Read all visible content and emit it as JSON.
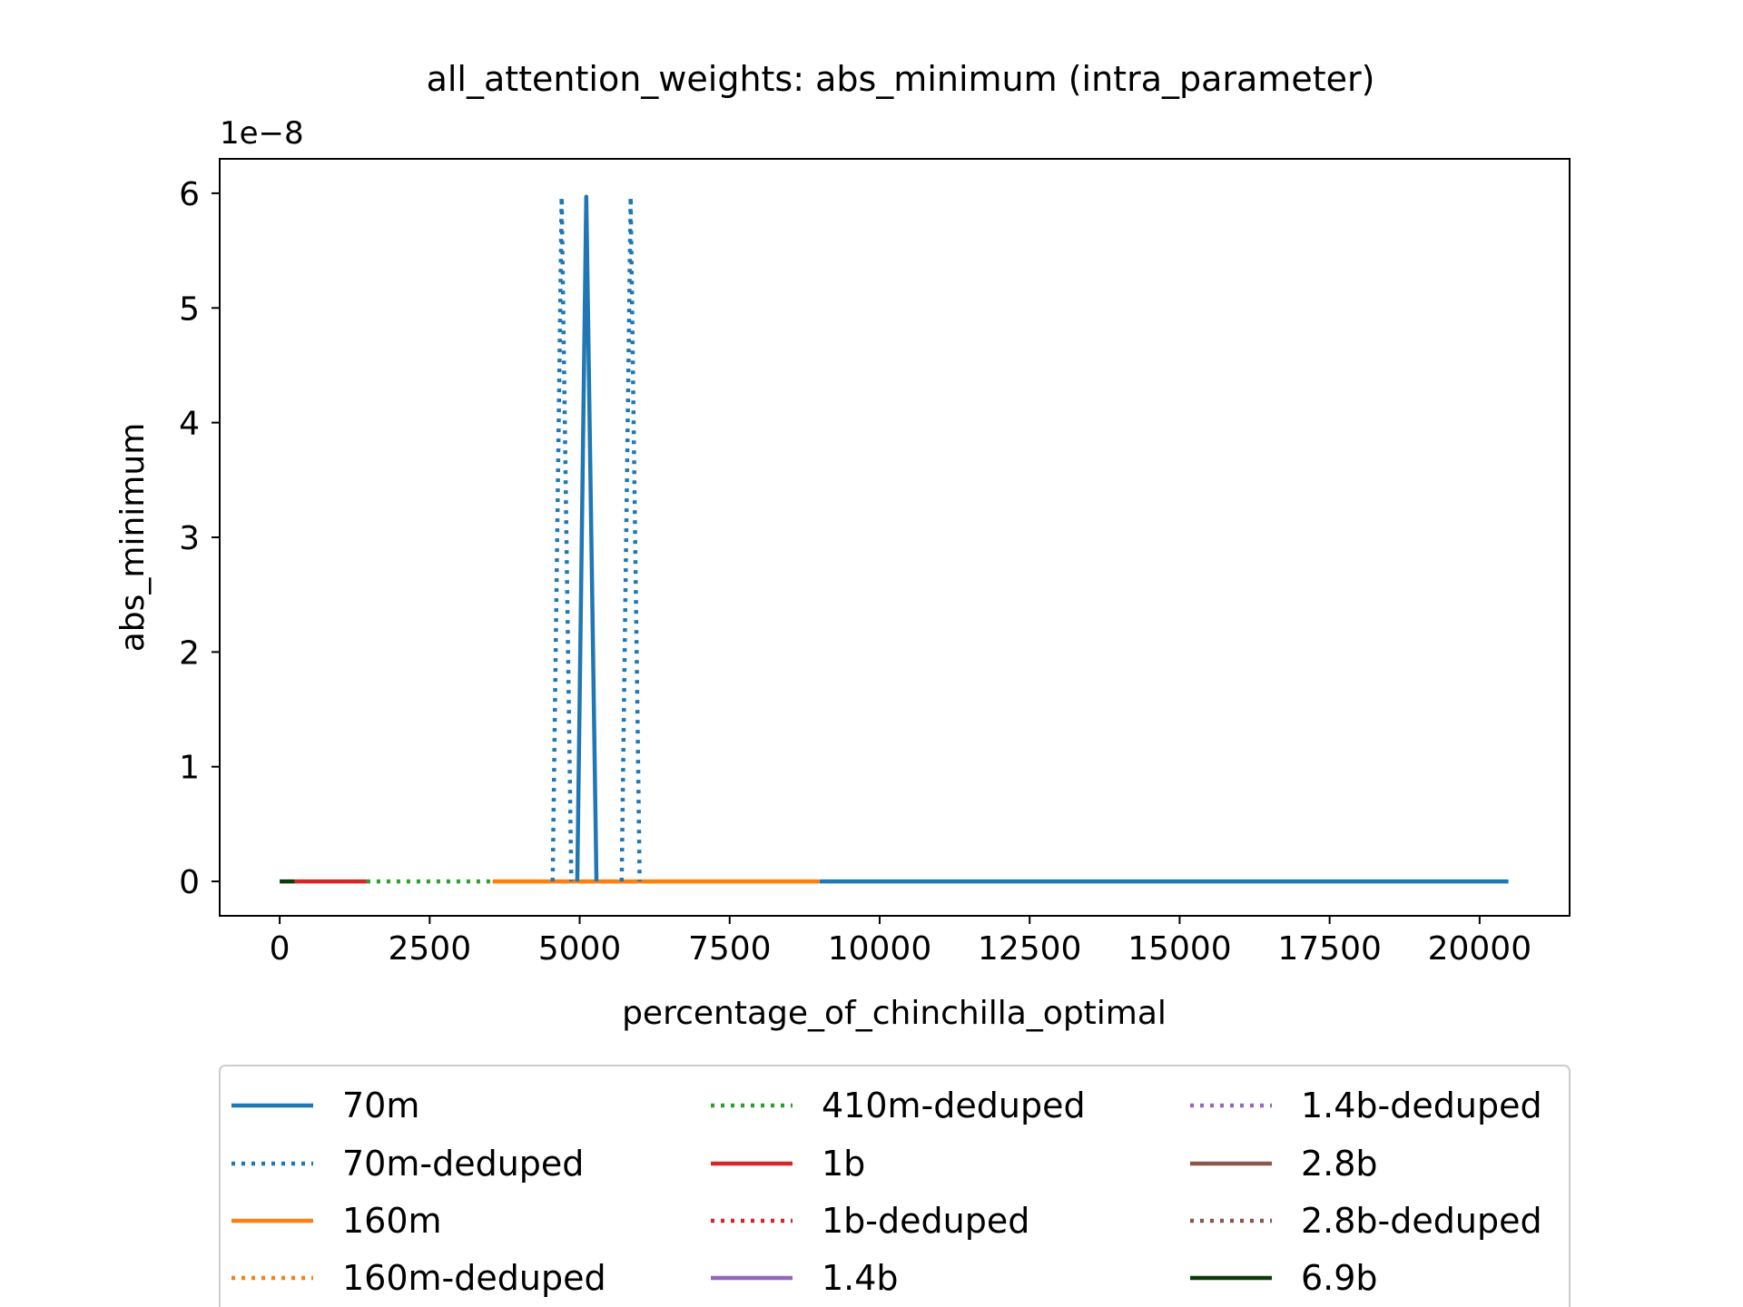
{
  "chart_data": {
    "type": "line",
    "title": "all_attention_weights: abs_minimum (intra_parameter)",
    "xlabel": "percentage_of_chinchilla_optimal",
    "ylabel": "abs_minimum",
    "y_offset_label": "1e−8",
    "y_scale_exponent": -8,
    "xlim": [
      -1000,
      21500
    ],
    "ylim": [
      -0.3,
      6.3
    ],
    "xticks": [
      0,
      2500,
      5000,
      7500,
      10000,
      12500,
      15000,
      17500,
      20000
    ],
    "xtick_labels": [
      "0",
      "2500",
      "5000",
      "7500",
      "10000",
      "12500",
      "15000",
      "17500",
      "20000"
    ],
    "yticks": [
      0,
      1,
      2,
      3,
      4,
      5,
      6
    ],
    "ytick_labels": [
      "0",
      "1",
      "2",
      "3",
      "4",
      "5",
      "6"
    ],
    "grid": false,
    "legend_position": "below the plot, 3 columns",
    "series": [
      {
        "name": "70m",
        "color": "#1f77b4",
        "style": "solid",
        "x": [
          9000,
          20480
        ],
        "y": [
          0,
          0
        ]
      },
      {
        "name": "70m-deduped",
        "color": "#1f77b4",
        "style": "dotted",
        "x": [],
        "y": []
      },
      {
        "name": "160m",
        "color": "#ff7f0e",
        "style": "solid",
        "x": [
          3550,
          9000
        ],
        "y": [
          0,
          0
        ]
      },
      {
        "name": "160m-deduped",
        "color": "#ff7f0e",
        "style": "dotted",
        "x": [],
        "y": []
      },
      {
        "name": "410m-deduped",
        "color": "#2ca02c",
        "style": "dotted",
        "x": [
          1450,
          3550
        ],
        "y": [
          0,
          0
        ]
      },
      {
        "name": "1b",
        "color": "#d62728",
        "style": "solid",
        "x": [
          250,
          1450
        ],
        "y": [
          0,
          0
        ]
      },
      {
        "name": "1b-deduped",
        "color": "#d62728",
        "style": "dotted",
        "x": [],
        "y": []
      },
      {
        "name": "1.4b",
        "color": "#9467bd",
        "style": "solid",
        "x": [],
        "y": []
      },
      {
        "name": "1.4b-deduped",
        "color": "#9467bd",
        "style": "dotted",
        "x": [],
        "y": []
      },
      {
        "name": "2.8b",
        "color": "#8c564b",
        "style": "solid",
        "x": [],
        "y": []
      },
      {
        "name": "2.8b-deduped",
        "color": "#8c564b",
        "style": "dotted",
        "x": [],
        "y": []
      },
      {
        "name": "6.9b",
        "color": "#0b3d0b",
        "style": "solid",
        "x": [
          0,
          250
        ],
        "y": [
          0,
          0
        ]
      }
    ],
    "spikes": [
      {
        "series": "70m",
        "color": "#1f77b4",
        "style": "solid",
        "x": [
          4960,
          5110,
          5280
        ],
        "y": [
          0,
          5.97,
          0
        ]
      },
      {
        "series": "70m-deduped",
        "color": "#1f77b4",
        "style": "dotted",
        "x": [
          4550,
          4700,
          4860
        ],
        "y": [
          0,
          5.97,
          0
        ]
      },
      {
        "series": "70m-deduped",
        "color": "#1f77b4",
        "style": "dotted",
        "x": [
          5700,
          5850,
          6000
        ],
        "y": [
          0,
          5.97,
          0
        ]
      }
    ]
  }
}
